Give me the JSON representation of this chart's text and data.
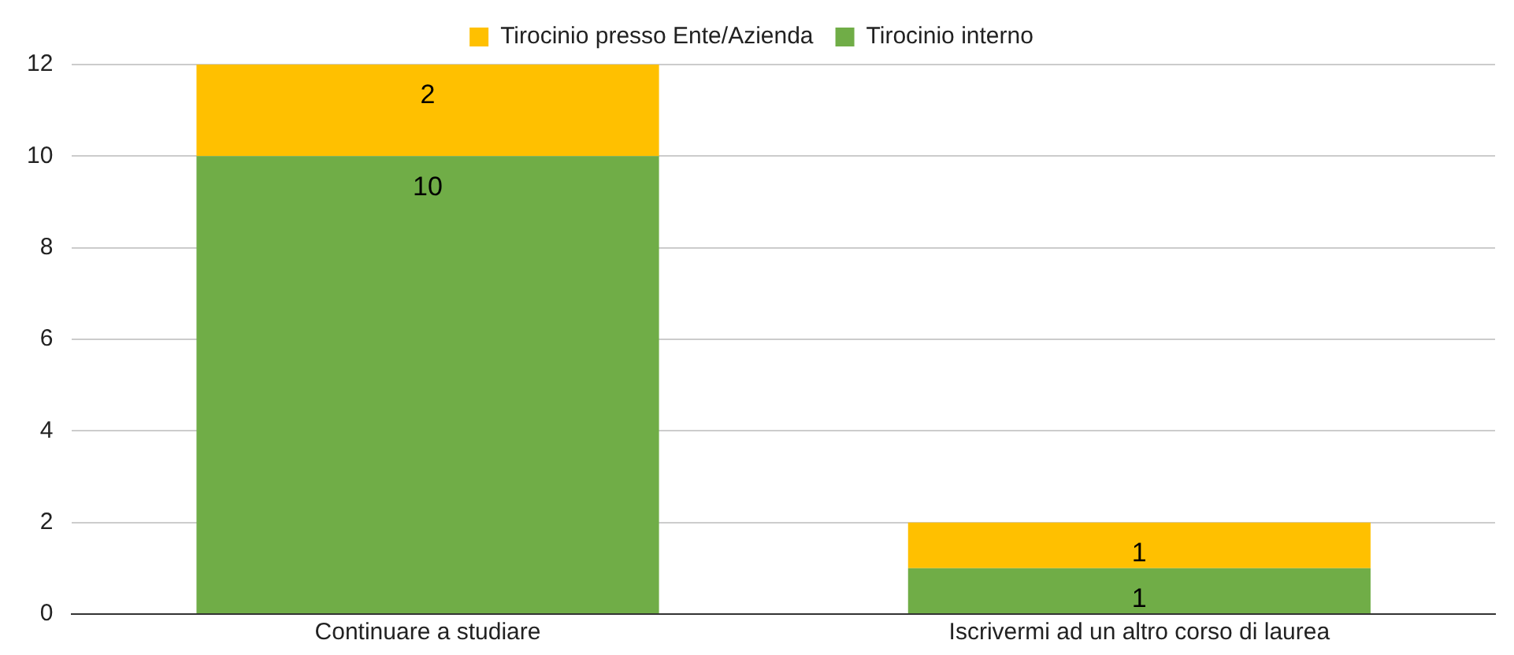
{
  "chart_data": {
    "type": "bar",
    "stacked": true,
    "categories": [
      "Continuare a studiare",
      "Iscrivermi ad un altro corso di laurea"
    ],
    "series": [
      {
        "name": "Tirocinio interno",
        "color": "#70ad47",
        "values": [
          10,
          1
        ]
      },
      {
        "name": "Tirocinio presso Ente/Azienda",
        "color": "#ffc000",
        "values": [
          2,
          1
        ]
      }
    ],
    "ylim": [
      0,
      12
    ],
    "yticks": [
      0,
      2,
      4,
      6,
      8,
      10,
      12
    ],
    "grid": "y",
    "legend": "top",
    "data_labels": true
  }
}
